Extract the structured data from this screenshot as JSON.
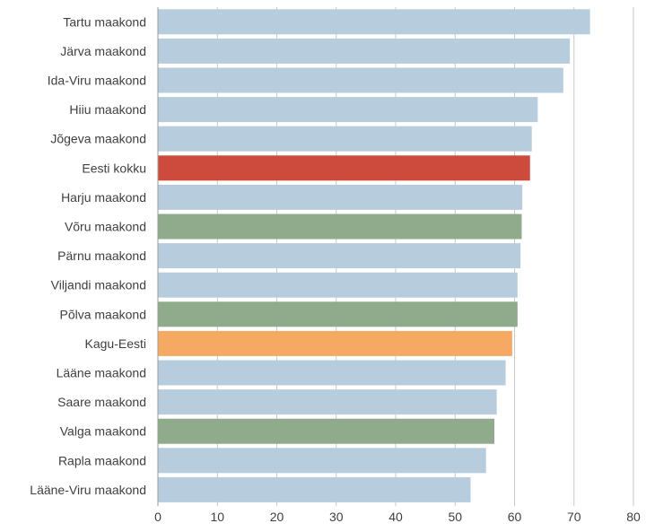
{
  "chart_data": {
    "type": "bar",
    "orientation": "horizontal",
    "title": "",
    "xlabel": "",
    "ylabel": "",
    "xlim": [
      0,
      80
    ],
    "xticks": [
      0,
      10,
      20,
      30,
      40,
      50,
      60,
      70,
      80
    ],
    "grid": true,
    "legend": "none",
    "categories": [
      "Tartu maakond",
      "Järva maakond",
      "Ida-Viru maakond",
      "Hiiu maakond",
      "Jõgeva maakond",
      "Eesti kokku",
      "Harju maakond",
      "Võru maakond",
      "Pärnu maakond",
      "Viljandi maakond",
      "Põlva maakond",
      "Kagu-Eesti",
      "Lääne maakond",
      "Saare maakond",
      "Valga maakond",
      "Rapla maakond",
      "Lääne-Viru maakond"
    ],
    "values": [
      72.7,
      69.3,
      68.2,
      63.9,
      62.9,
      62.6,
      61.3,
      61.2,
      61.0,
      60.5,
      60.5,
      59.6,
      58.5,
      57.0,
      56.6,
      55.2,
      52.6
    ],
    "colors": [
      "#b7ccdc",
      "#b7ccdc",
      "#b7ccdc",
      "#b7ccdc",
      "#b7ccdc",
      "#cc4b3c",
      "#b7ccdc",
      "#8fab8b",
      "#b7ccdc",
      "#b7ccdc",
      "#8fab8b",
      "#f6a963",
      "#b7ccdc",
      "#b7ccdc",
      "#8fab8b",
      "#b7ccdc",
      "#b7ccdc"
    ]
  }
}
